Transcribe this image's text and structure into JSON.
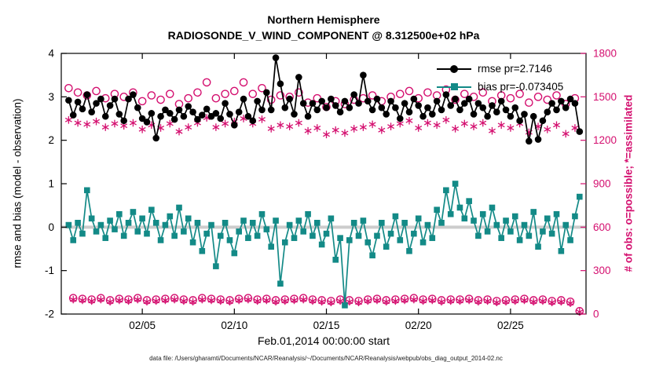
{
  "footer": {
    "text": "data file: /Users/gharamti/Documents/NCAR/Reanalysis/~/Documents/NCAR/Reanalysis/webpub/obs_diag_output_2014-02.nc"
  },
  "chart_data": {
    "type": "line",
    "title": "Northern Hemisphere",
    "subtitle": "RADIOSONDE_V_WIND_COMPONENT @ 8.312500e+02 hPa",
    "xlabel": "Feb.01,2014 00:00:00 start",
    "ylabel_left": "rmse and bias (model - observation)",
    "ylabel_right": "# of obs: o=possible; *=assimilated",
    "legend_position": "top-right",
    "grid": false,
    "zero_line_color": "#cccccc",
    "axis_color_left": "#000000",
    "axis_color_right": "#d40f6f",
    "xlim": [
      -0.4,
      28.1
    ],
    "x_start_day": 0,
    "x_step_days": 0.25,
    "xticks": [
      {
        "day": 4,
        "label": "02/05"
      },
      {
        "day": 9,
        "label": "02/10"
      },
      {
        "day": 14,
        "label": "02/15"
      },
      {
        "day": 19,
        "label": "02/20"
      },
      {
        "day": 24,
        "label": "02/25"
      }
    ],
    "ylim_left": [
      -2,
      4
    ],
    "yticks_left": [
      -2,
      -1,
      0,
      1,
      2,
      3,
      4
    ],
    "ylim_right": [
      0,
      1800
    ],
    "yticks_right": [
      0,
      300,
      600,
      900,
      1200,
      1500,
      1800
    ],
    "series": [
      {
        "name": "rmse",
        "legend": "rmse pr=2.7146",
        "color": "#000000",
        "marker": "circle",
        "line": true,
        "axis": "left",
        "values": [
          2.92,
          2.58,
          2.88,
          2.72,
          3.05,
          2.65,
          2.85,
          2.95,
          2.55,
          2.8,
          2.95,
          2.6,
          2.45,
          2.95,
          3.05,
          2.75,
          2.5,
          2.42,
          2.62,
          2.05,
          2.55,
          2.7,
          2.62,
          2.48,
          2.7,
          2.55,
          2.78,
          2.65,
          2.48,
          2.58,
          2.72,
          2.55,
          2.62,
          2.5,
          2.85,
          2.6,
          2.35,
          2.65,
          2.95,
          2.55,
          2.45,
          2.9,
          2.7,
          3.1,
          2.7,
          3.9,
          3.3,
          2.75,
          2.95,
          2.6,
          3.45,
          2.85,
          2.55,
          2.85,
          2.7,
          2.9,
          2.75,
          2.95,
          2.8,
          2.65,
          2.9,
          2.75,
          3.05,
          2.85,
          3.5,
          2.9,
          2.7,
          2.95,
          2.75,
          2.6,
          2.9,
          2.75,
          2.5,
          2.85,
          2.65,
          2.95,
          2.8,
          2.55,
          2.75,
          2.6,
          2.9,
          2.7,
          3.05,
          2.8,
          2.95,
          2.7,
          2.85,
          2.95,
          2.6,
          2.85,
          2.75,
          2.55,
          2.8,
          2.65,
          2.9,
          2.7,
          2.55,
          2.75,
          2.45,
          2.6,
          1.98,
          2.55,
          2.02,
          2.45,
          2.65,
          2.85,
          2.7,
          2.9,
          2.75,
          2.95,
          2.85,
          2.2
        ]
      },
      {
        "name": "bias",
        "legend": "bias pr=-0.073405",
        "color": "#138a87",
        "marker": "square",
        "line": true,
        "axis": "left",
        "values": [
          0.05,
          -0.3,
          0.1,
          -0.15,
          0.85,
          0.2,
          -0.1,
          0.05,
          -0.25,
          0.15,
          -0.05,
          0.3,
          -0.2,
          0.1,
          0.35,
          -0.1,
          0.2,
          -0.15,
          0.4,
          0.1,
          -0.3,
          0.05,
          0.25,
          -0.2,
          0.45,
          -0.1,
          0.2,
          -0.35,
          0.1,
          -0.55,
          -0.15,
          0.05,
          -0.9,
          -0.2,
          0.1,
          -0.3,
          -0.6,
          -0.1,
          0.15,
          -0.25,
          0.1,
          -0.2,
          0.3,
          -0.05,
          -0.45,
          0.15,
          -1.3,
          -0.35,
          0.05,
          -0.25,
          0.15,
          -0.1,
          0.3,
          -0.2,
          0.1,
          -0.4,
          -0.15,
          0.2,
          -0.75,
          -0.25,
          -1.8,
          -0.3,
          0.1,
          -0.2,
          0.15,
          -0.35,
          -0.65,
          -0.2,
          0.1,
          -0.45,
          -0.15,
          0.25,
          -0.3,
          0.1,
          -0.55,
          -0.15,
          0.2,
          -0.35,
          0.05,
          -0.25,
          0.4,
          0.1,
          0.85,
          0.3,
          1.0,
          0.45,
          0.2,
          0.6,
          0.15,
          -0.2,
          0.3,
          -0.1,
          0.45,
          0.05,
          -0.25,
          0.15,
          -0.1,
          0.25,
          -0.3,
          0.05,
          -0.2,
          0.35,
          -0.45,
          -0.1,
          0.2,
          -0.15,
          0.3,
          -0.55,
          0.05,
          -0.3,
          0.25,
          0.7
        ]
      },
      {
        "name": "possible-obs",
        "legend": "",
        "color": "#d40f6f",
        "marker": "open-circle",
        "line": false,
        "axis": "right",
        "values": [
          1560,
          110,
          1530,
          105,
          1510,
          100,
          1540,
          110,
          1490,
          95,
          1520,
          105,
          1500,
          100,
          1530,
          110,
          1470,
          95,
          1510,
          100,
          1480,
          105,
          1520,
          110,
          1450,
          100,
          1490,
          95,
          1530,
          110,
          1600,
          105,
          1490,
          100,
          1520,
          95,
          1540,
          105,
          1600,
          110,
          1520,
          100,
          1560,
          105,
          1480,
          95,
          1510,
          100,
          1500,
          105,
          1530,
          110,
          1460,
          100,
          1490,
          95,
          1430,
          90,
          1470,
          100,
          1450,
          95,
          1480,
          90,
          1490,
          100,
          1510,
          105,
          1470,
          95,
          1500,
          100,
          1520,
          105,
          1540,
          110,
          1490,
          100,
          1530,
          105,
          1510,
          95,
          1550,
          100,
          1480,
          100,
          1520,
          105,
          1500,
          95,
          1530,
          100,
          1470,
          90,
          1510,
          95,
          1490,
          100,
          1520,
          105,
          1460,
          95,
          1500,
          100,
          1480,
          90,
          1510,
          95,
          1450,
          85,
          1490,
          20
        ]
      },
      {
        "name": "assimilated-obs",
        "legend": "",
        "color": "#d40f6f",
        "marker": "asterisk",
        "line": false,
        "axis": "right",
        "values": [
          1340,
          100,
          1320,
          95,
          1310,
          90,
          1330,
          100,
          1290,
          85,
          1315,
          95,
          1300,
          90,
          1320,
          100,
          1275,
          85,
          1305,
          90,
          1285,
          95,
          1315,
          100,
          1260,
          90,
          1290,
          85,
          1320,
          100,
          1355,
          95,
          1290,
          90,
          1315,
          85,
          1330,
          95,
          1350,
          100,
          1315,
          90,
          1345,
          95,
          1280,
          85,
          1305,
          90,
          1295,
          95,
          1320,
          100,
          1265,
          90,
          1285,
          85,
          1240,
          80,
          1270,
          90,
          1250,
          85,
          1280,
          80,
          1290,
          90,
          1310,
          95,
          1270,
          85,
          1295,
          90,
          1315,
          95,
          1335,
          100,
          1285,
          90,
          1320,
          95,
          1305,
          85,
          1340,
          90,
          1280,
          90,
          1315,
          95,
          1295,
          85,
          1320,
          90,
          1265,
          80,
          1305,
          85,
          1285,
          90,
          1315,
          95,
          1255,
          85,
          1295,
          90,
          1275,
          80,
          1305,
          85,
          1245,
          75,
          1285,
          15
        ]
      }
    ]
  }
}
